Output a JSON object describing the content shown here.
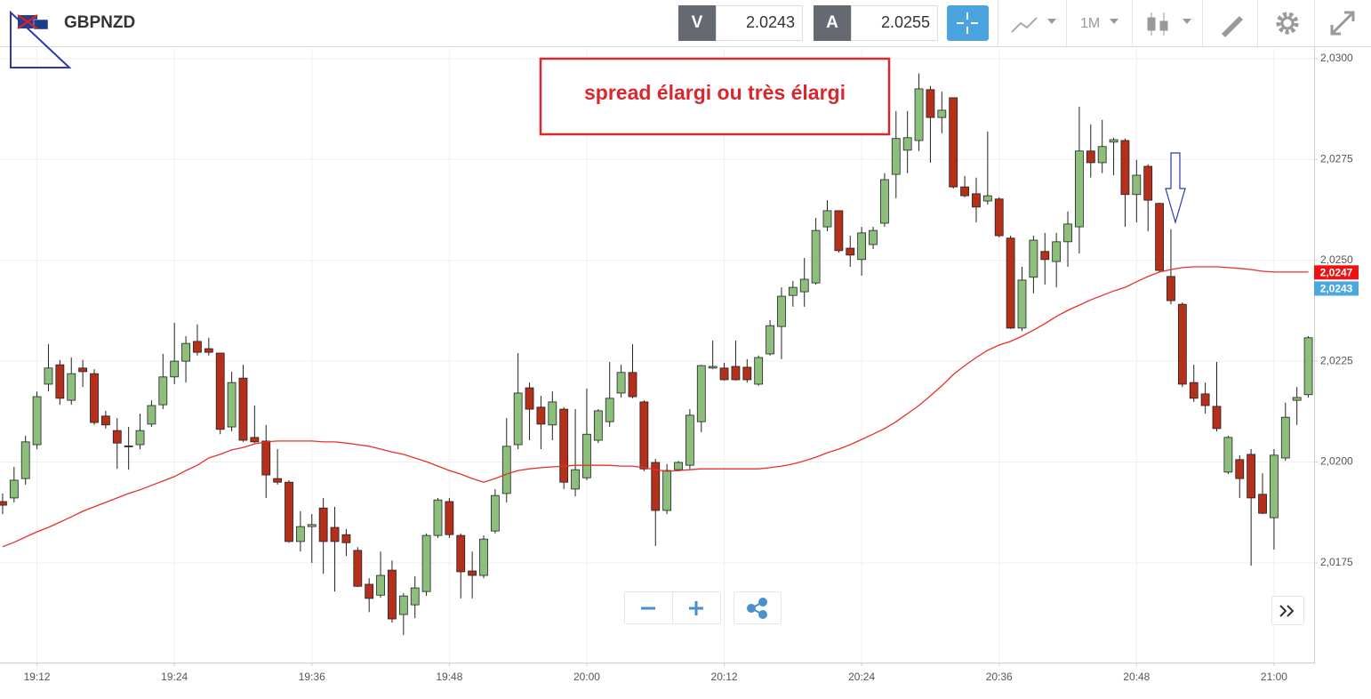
{
  "toolbar": {
    "symbol": "GBPNZD",
    "bid_label": "V",
    "bid": "2.0243",
    "ask_label": "A",
    "ask": "2.0255",
    "timeframe": "1M"
  },
  "chart_data": {
    "type": "candlestick",
    "annotation": "spread élargi ou très élargi",
    "categories": [
      null,
      null,
      null,
      "19:12",
      null,
      null,
      null,
      null,
      null,
      null,
      null,
      null,
      null,
      null,
      null,
      "19:24",
      null,
      null,
      null,
      null,
      null,
      null,
      null,
      null,
      null,
      null,
      null,
      "19:36",
      null,
      null,
      null,
      null,
      null,
      null,
      null,
      null,
      null,
      null,
      null,
      "19:48",
      null,
      null,
      null,
      null,
      null,
      null,
      null,
      null,
      null,
      null,
      null,
      "20:00",
      null,
      null,
      null,
      null,
      null,
      null,
      null,
      null,
      null,
      null,
      null,
      "20:12",
      null,
      null,
      null,
      null,
      null,
      null,
      null,
      null,
      null,
      null,
      null,
      "20:24",
      null,
      null,
      null,
      null,
      null,
      null,
      null,
      null,
      null,
      null,
      null,
      "20:36",
      null,
      null,
      null,
      null,
      null,
      null,
      null,
      null,
      null,
      null,
      null,
      "20:48",
      null,
      null,
      null,
      null,
      null,
      null,
      null,
      null,
      null,
      null,
      null,
      "21:00",
      null,
      null,
      null
    ],
    "open": [
      2.01902,
      2.01911,
      2.01959,
      2.02043,
      2.02193,
      2.02241,
      2.02153,
      2.02233,
      2.02219,
      2.02114,
      2.02078,
      2.0204,
      2.02043,
      2.02094,
      2.02142,
      2.02211,
      2.0225,
      2.02299,
      2.02281,
      2.0227,
      2.02087,
      2.02208,
      2.02061,
      2.02052,
      2.01959,
      2.0195,
      2.01803,
      2.0184,
      2.01886,
      2.01838,
      2.0182,
      2.01781,
      2.01697,
      2.0167,
      2.01732,
      2.01622,
      2.01646,
      2.01679,
      2.01818,
      2.01902,
      2.01818,
      2.0173,
      2.01719,
      2.01829,
      2.01922,
      2.02043,
      2.02184,
      2.02136,
      2.02092,
      2.02131,
      2.01933,
      2.01961,
      2.02054,
      2.021,
      2.02171,
      2.02222,
      2.02149,
      2.01999,
      2.0188,
      2.01981,
      2.01992,
      2.021,
      2.02233,
      2.02233,
      2.02237,
      2.02235,
      2.02193,
      2.02268,
      2.02336,
      2.02413,
      2.02422,
      2.02444,
      2.02583,
      2.02623,
      2.0253,
      2.02502,
      2.02539,
      2.02592,
      2.02713,
      2.02773,
      2.02797,
      2.02923,
      2.02854,
      2.02903,
      2.02682,
      2.02665,
      2.02647,
      2.02652,
      2.02555,
      2.02332,
      2.02458,
      2.02522,
      2.02497,
      2.02546,
      2.02583,
      2.02771,
      2.02742,
      2.02793,
      2.02797,
      2.02663,
      2.02733,
      2.02641,
      2.0246,
      2.02391,
      2.02197,
      2.02169,
      2.02138,
      2.01975,
      2.02006,
      2.02019,
      2.0192,
      2.01862,
      2.0201,
      2.02153,
      2.02167
    ],
    "high": [
      2.01922,
      2.01988,
      2.02065,
      2.02175,
      2.02292,
      2.02253,
      2.02259,
      2.02253,
      2.0223,
      2.02127,
      2.02109,
      2.02087,
      2.0212,
      2.02153,
      2.02268,
      2.02345,
      2.02312,
      2.02341,
      2.02308,
      2.0227,
      2.02224,
      2.02241,
      2.0214,
      2.02092,
      2.02032,
      2.01955,
      2.01878,
      2.01871,
      2.01911,
      2.01889,
      2.01834,
      2.01789,
      2.01712,
      2.01778,
      2.01756,
      2.01675,
      2.01717,
      2.01823,
      2.01911,
      2.01911,
      2.01823,
      2.01778,
      2.01818,
      2.01933,
      2.02109,
      2.0227,
      2.02197,
      2.02164,
      2.02175,
      2.02136,
      2.02131,
      2.02182,
      2.02131,
      2.02248,
      2.02241,
      2.02292,
      2.02153,
      2.02008,
      2.01995,
      2.02003,
      2.02131,
      2.02241,
      2.02301,
      2.02246,
      2.02301,
      2.02255,
      2.02264,
      2.02352,
      2.02433,
      2.02449,
      2.02506,
      2.02605,
      2.02649,
      2.02623,
      2.02561,
      2.02583,
      2.02583,
      2.02716,
      2.0287,
      2.0287,
      2.02963,
      2.02932,
      2.02918,
      2.02903,
      2.02709,
      2.02705,
      2.02819,
      2.02656,
      2.02561,
      2.02484,
      2.02561,
      2.02568,
      2.02568,
      2.02621,
      2.02881,
      2.02837,
      2.02848,
      2.02804,
      2.02802,
      2.02749,
      2.02738,
      2.02643,
      2.02577,
      2.02396,
      2.02241,
      2.02197,
      2.02248,
      2.02065,
      2.02017,
      2.02032,
      2.01972,
      2.02032,
      2.02147,
      2.02186,
      2.02312
    ],
    "low": [
      2.01871,
      2.019,
      2.01944,
      2.02032,
      2.02175,
      2.02142,
      2.02142,
      2.02186,
      2.02092,
      2.02083,
      2.01983,
      2.01981,
      2.02032,
      2.02087,
      2.02131,
      2.02193,
      2.02197,
      2.02264,
      2.02264,
      2.02069,
      2.02076,
      2.0205,
      2.02047,
      2.01911,
      2.01944,
      2.018,
      2.01778,
      2.0175,
      2.01723,
      2.01679,
      2.01767,
      2.0169,
      2.01628,
      2.01664,
      2.01602,
      2.01571,
      2.01613,
      2.01668,
      2.01812,
      2.01812,
      2.01662,
      2.01662,
      2.01712,
      2.01823,
      2.019,
      2.02032,
      2.02054,
      2.02032,
      2.02054,
      2.01933,
      2.01915,
      2.01955,
      2.02047,
      2.02087,
      2.0216,
      2.02158,
      2.01977,
      2.01792,
      2.01871,
      2.01977,
      2.01983,
      2.02074,
      2.0223,
      2.02202,
      2.02202,
      2.02197,
      2.02189,
      2.02264,
      2.02255,
      2.02385,
      2.02385,
      2.0244,
      2.02572,
      2.02519,
      2.02484,
      2.02462,
      2.02528,
      2.02583,
      2.02654,
      2.02716,
      2.02771,
      2.02742,
      2.02815,
      2.02678,
      2.02656,
      2.02594,
      2.02638,
      2.02557,
      2.0233,
      2.02325,
      2.02418,
      2.0244,
      2.02433,
      2.02484,
      2.02517,
      2.02705,
      2.02716,
      2.02711,
      2.02583,
      2.02594,
      2.02572,
      2.02471,
      2.02391,
      2.02186,
      2.02149,
      2.0212,
      2.02076,
      2.0197,
      2.01911,
      2.01743,
      2.01871,
      2.01783,
      2.02003,
      2.02092,
      2.0216
    ],
    "close": [
      2.01893,
      2.01955,
      2.0205,
      2.02162,
      2.02233,
      2.02158,
      2.02219,
      2.02224,
      2.02098,
      2.02092,
      2.02047,
      2.02039,
      2.02078,
      2.0214,
      2.02211,
      2.0225,
      2.02294,
      2.02272,
      2.02272,
      2.02081,
      2.02197,
      2.02054,
      2.0205,
      2.01968,
      2.0195,
      2.01803,
      2.0184,
      2.01845,
      2.01803,
      2.01803,
      2.018,
      2.01692,
      2.01662,
      2.01719,
      2.01611,
      2.01668,
      2.01688,
      2.01818,
      2.01906,
      2.0182,
      2.01728,
      2.01719,
      2.01809,
      2.01917,
      2.02039,
      2.02171,
      2.02131,
      2.02094,
      2.02149,
      2.0195,
      2.01981,
      2.02069,
      2.02127,
      2.02158,
      2.02222,
      2.02162,
      2.01983,
      2.0188,
      2.01979,
      2.01999,
      2.02116,
      2.02239,
      2.02237,
      2.02204,
      2.02204,
      2.02204,
      2.02259,
      2.02338,
      2.02411,
      2.02433,
      2.02453,
      2.02574,
      2.02623,
      2.02524,
      2.02513,
      2.02568,
      2.02574,
      2.027,
      2.02802,
      2.02804,
      2.02925,
      2.02854,
      2.02872,
      2.02682,
      2.0266,
      2.02632,
      2.0266,
      2.02561,
      2.02332,
      2.02451,
      2.0255,
      2.02502,
      2.02546,
      2.0259,
      2.02771,
      2.02742,
      2.02782,
      2.02799,
      2.02663,
      2.02711,
      2.02649,
      2.02475,
      2.024,
      2.02193,
      2.02158,
      2.0214,
      2.02083,
      2.02061,
      2.01959,
      2.01911,
      2.01873,
      2.02017,
      2.02111,
      2.0216,
      2.02308
    ],
    "up_color": "#8dbf7c",
    "down_color": "#b5301a",
    "line": {
      "color": "#e8302c",
      "values": [
        2.0179,
        2.01801,
        2.01814,
        2.01827,
        2.01838,
        2.01851,
        2.01864,
        2.01878,
        2.01889,
        2.019,
        2.01911,
        2.01922,
        2.01931,
        2.01942,
        2.01953,
        2.01964,
        2.01979,
        2.01992,
        2.0201,
        2.02019,
        2.0203,
        2.02036,
        2.02045,
        2.0205,
        2.02052,
        2.02052,
        2.02052,
        2.02052,
        2.0205,
        2.0205,
        2.02047,
        2.02043,
        2.02039,
        2.02032,
        2.02025,
        2.02019,
        2.0201,
        2.02001,
        2.0199,
        2.01979,
        2.0197,
        2.01959,
        2.0195,
        2.01959,
        2.0197,
        2.01979,
        2.01983,
        2.01986,
        2.01988,
        2.0199,
        2.01992,
        2.01992,
        2.01992,
        2.01992,
        2.0199,
        2.0199,
        2.01986,
        2.01981,
        2.01977,
        2.01979,
        2.01981,
        2.01983,
        2.01983,
        2.01983,
        2.01983,
        2.01983,
        2.01983,
        2.01986,
        2.0199,
        2.01995,
        2.02003,
        2.02012,
        2.02023,
        2.02032,
        2.02043,
        2.02056,
        2.02069,
        2.02083,
        2.021,
        2.0212,
        2.0214,
        2.02164,
        2.02189,
        2.02217,
        2.02239,
        2.02259,
        2.02277,
        2.0229,
        2.02299,
        2.02312,
        2.02327,
        2.02343,
        2.02361,
        2.02376,
        2.02389,
        2.02402,
        2.02413,
        2.02424,
        2.02433,
        2.02447,
        2.0246,
        2.02471,
        2.02477,
        2.02482,
        2.02484,
        2.02484,
        2.02484,
        2.02482,
        2.0248,
        2.02477,
        2.02473,
        2.02471,
        2.02471,
        2.02471,
        2.02471
      ]
    },
    "price_tags": [
      {
        "value": 2.0247,
        "label": "2,0247",
        "color": "#ee1111"
      },
      {
        "value": 2.0243,
        "label": "2,0243",
        "color": "#4aa8dc"
      }
    ],
    "ylim": [
      2.01503,
      2.03024
    ],
    "yticks": [
      {
        "value": 2.0175,
        "label": "2,0175"
      },
      {
        "value": 2.02,
        "label": "2,0200"
      },
      {
        "value": 2.0225,
        "label": "2,0225"
      },
      {
        "value": 2.025,
        "label": "2,0250"
      },
      {
        "value": 2.0275,
        "label": "2,0275"
      },
      {
        "value": 2.03,
        "label": "2,0300"
      }
    ],
    "grid": true
  }
}
